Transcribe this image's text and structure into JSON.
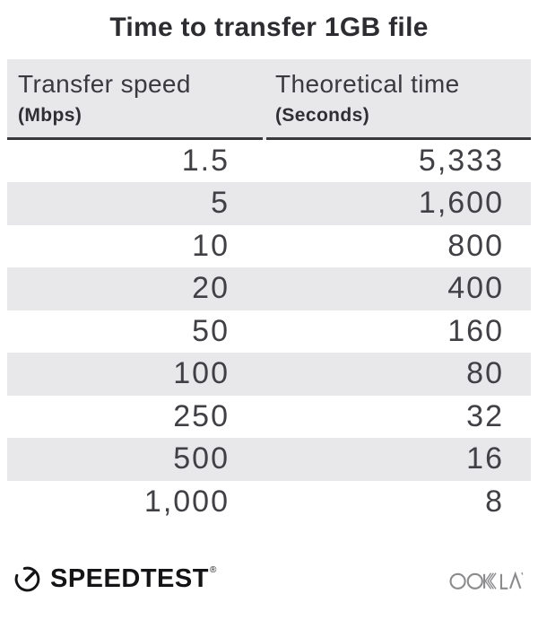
{
  "title": "Time to transfer 1GB file",
  "table": {
    "columns": [
      {
        "label": "Transfer speed",
        "unit": "(Mbps)"
      },
      {
        "label": "Theoretical time",
        "unit": "(Seconds)"
      }
    ],
    "rows": [
      {
        "speed": "1.5",
        "time": "5,333"
      },
      {
        "speed": "5",
        "time": "1,600"
      },
      {
        "speed": "10",
        "time": "800"
      },
      {
        "speed": "20",
        "time": "400"
      },
      {
        "speed": "50",
        "time": "160"
      },
      {
        "speed": "100",
        "time": "80"
      },
      {
        "speed": "250",
        "time": "32"
      },
      {
        "speed": "500",
        "time": "16"
      },
      {
        "speed": "1,000",
        "time": "8"
      }
    ]
  },
  "footer": {
    "speedtest_label": "SPEEDTEST",
    "speedtest_reg": "®",
    "ookla_label": "OOKLA"
  },
  "colors": {
    "row_alt": "#e8e7ea",
    "header_bg": "#e8e7ea",
    "header_border": "#39383c",
    "title_text": "#2d2c30",
    "number_text": "#414045",
    "brand_black": "#141416",
    "ookla_gray": "#8b8a8d"
  },
  "chart_data": {
    "type": "table",
    "title": "Time to transfer 1GB file",
    "columns": [
      "Transfer speed (Mbps)",
      "Theoretical time (Seconds)"
    ],
    "rows": [
      [
        1.5,
        5333
      ],
      [
        5,
        1600
      ],
      [
        10,
        800
      ],
      [
        20,
        400
      ],
      [
        50,
        160
      ],
      [
        100,
        80
      ],
      [
        250,
        32
      ],
      [
        500,
        16
      ],
      [
        1000,
        8
      ]
    ]
  }
}
